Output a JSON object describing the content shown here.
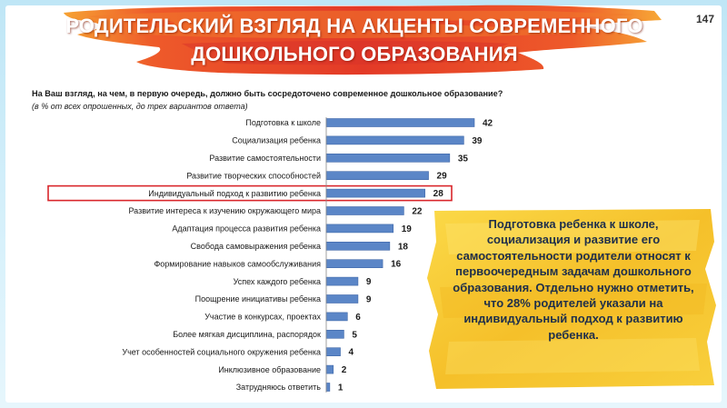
{
  "header": {
    "title_line1": "РОДИТЕЛЬСКИЙ ВЗГЛЯД НА АКЦЕНТЫ СОВРЕМЕННОГО",
    "title_line2": "ДОШКОЛЬНОГО ОБРАЗОВАНИЯ",
    "page_number": "147"
  },
  "question": "На Ваш взгляд, на чем, в первую очередь, должно быть сосредоточено современное дошкольное образование?",
  "note": "(в % от всех опрошенных, до трех вариантов ответа)",
  "callout": {
    "text": "Подготовка ребенка к школе, социализация и развитие его самостоятельности родители относят к первоочередным задачам дошкольного образования. Отдельно нужно отметить, что 28% родителей указали на индивидуальный подход к развитию ребенка."
  },
  "colors": {
    "bar": "#5b86c7",
    "bar_edge": "#3f67a8",
    "highlight_box": "#d9262b",
    "banner_red": "#e8402a",
    "banner_orange": "#f39a2a",
    "callout_yellow": "#f6c62f"
  },
  "chart_data": {
    "type": "bar",
    "orientation": "horizontal",
    "categories": [
      "Подготовка к школе",
      "Социализация ребенка",
      "Развитие самостоятельности",
      "Развитие творческих способностей",
      "Индивидуальный подход к развитию ребенка",
      "Развитие интереса к изучению окружающего мира",
      "Адаптация процесса развития ребенка",
      "Свобода самовыражения ребенка",
      "Формирование навыков самообслуживания",
      "Успех каждого ребенка",
      "Поощрение инициативы ребенка",
      "Участие в конкурсах, проектах",
      "Более мягкая дисциплина, распорядок",
      "Учет особенностей социального окружения ребенка",
      "Инклюзивное образование",
      "Затрудняюсь ответить"
    ],
    "values": [
      42,
      39,
      35,
      29,
      28,
      22,
      19,
      18,
      16,
      9,
      9,
      6,
      5,
      4,
      2,
      1
    ],
    "highlighted_index": 4,
    "xlim": [
      0,
      45
    ]
  }
}
